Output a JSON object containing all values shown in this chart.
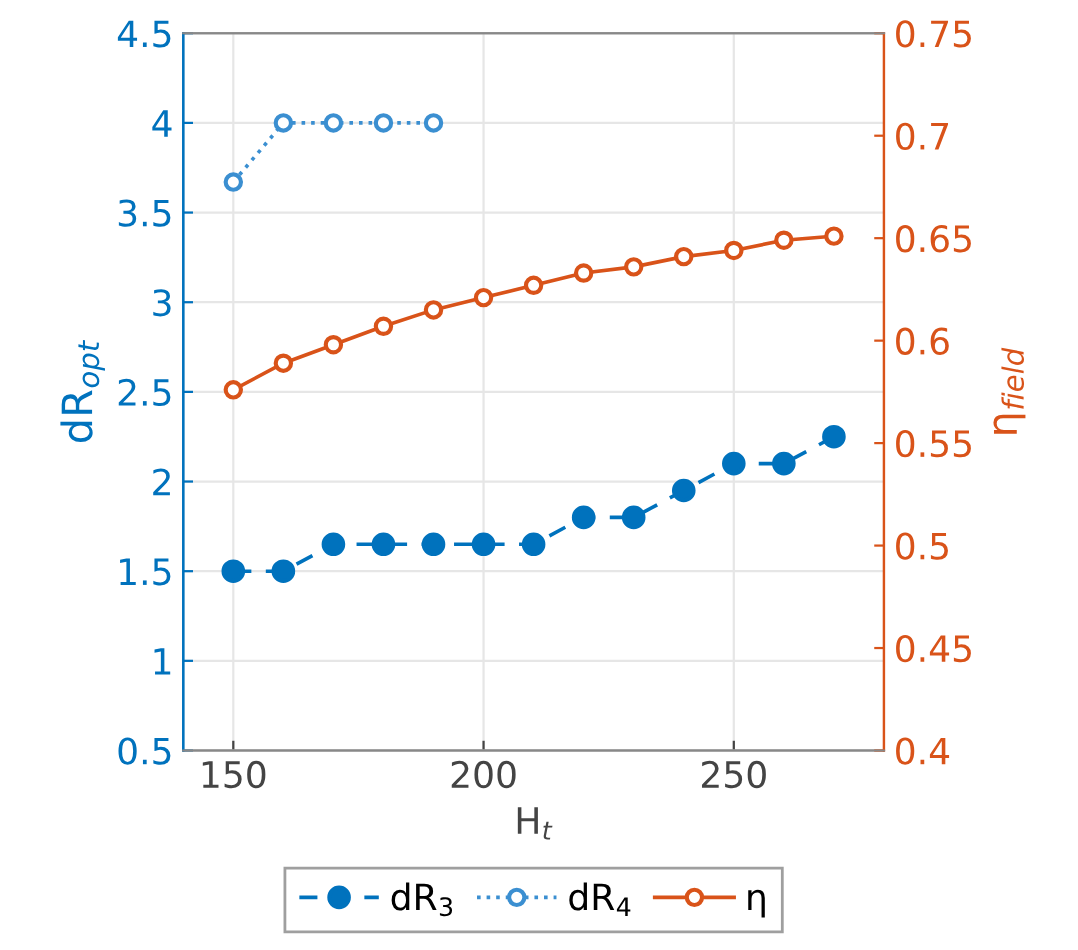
{
  "chart_data": {
    "type": "line",
    "xlabel": "H$_{t}$",
    "ylabel": "dR$_{opt}$",
    "y2label": "η$_{field}$",
    "x": [
      150,
      160,
      170,
      180,
      190,
      200,
      210,
      220,
      230,
      240,
      250,
      260,
      270
    ],
    "series": [
      {
        "name": "dR$_{3}$",
        "color": "#0072bd",
        "line_style": "dashed",
        "marker": "circle",
        "values": [
          1.5,
          1.5,
          1.65,
          1.65,
          1.65,
          1.65,
          1.65,
          1.8,
          1.8,
          1.95,
          2.1,
          2.1,
          2.25
        ]
      },
      {
        "name": "dR$_{4}$",
        "color": "#3b8fd1",
        "line_style": "dotted",
        "marker": "circle",
        "values": [
          3.67,
          4,
          4,
          4,
          4,
          null,
          null,
          null,
          null,
          null,
          null,
          null,
          null
        ]
      },
      {
        "name": "η",
        "color": "#d95319",
        "line_style": "solid",
        "marker": "circle",
        "axis": "y2",
        "values": [
          0.576,
          0.589,
          0.598,
          0.607,
          0.615,
          0.621,
          0.627,
          0.633,
          0.636,
          0.641,
          0.644,
          0.649,
          0.651
        ]
      }
    ],
    "xlim": [
      140,
      280
    ],
    "xticks": [
      150,
      200,
      250
    ],
    "ylim": [
      0.5,
      4.5
    ],
    "yticks": [
      0.5,
      1,
      1.5,
      2,
      2.5,
      3,
      3.5,
      4,
      4.5
    ],
    "y2lim": [
      0.4,
      0.75
    ],
    "y2ticks": [
      0.4,
      0.45,
      0.5,
      0.55,
      0.6,
      0.65,
      0.7,
      0.75
    ],
    "grid": true,
    "legend": "bottom"
  }
}
